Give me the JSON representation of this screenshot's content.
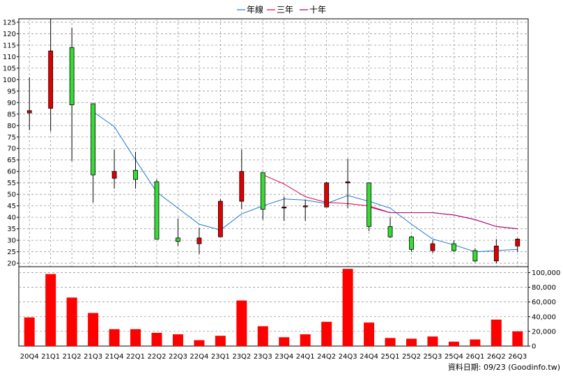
{
  "legend": [
    {
      "label": "年線",
      "color": "#1f77d4"
    },
    {
      "label": "三年",
      "color": "#e0004f"
    },
    {
      "label": "十年",
      "color": "#a0007a"
    }
  ],
  "credit": "資料日期: 09/23  (Goodinfo.tw)",
  "colors": {
    "up": "#e00000",
    "down": "#33dd33",
    "volume": "#ff0000",
    "grid": "#999999"
  },
  "chart_data": {
    "type": "candlestick",
    "categories": [
      "20Q4",
      "21Q1",
      "21Q2",
      "21Q3",
      "21Q4",
      "22Q1",
      "22Q2",
      "22Q3",
      "22Q4",
      "23Q1",
      "23Q2",
      "23Q3",
      "23Q4",
      "24Q1",
      "24Q2",
      "24Q3",
      "24Q4",
      "25Q1",
      "25Q2",
      "25Q3",
      "25Q4",
      "26Q1",
      "26Q2",
      "26Q3"
    ],
    "price_ticks": [
      20,
      25,
      30,
      35,
      40,
      45,
      50,
      55,
      60,
      65,
      70,
      75,
      80,
      85,
      90,
      95,
      100,
      105,
      110,
      115,
      120,
      125
    ],
    "price_ylim": [
      18.5,
      126.5
    ],
    "ohlc": [
      {
        "o": 85.5,
        "h": 101,
        "l": 78,
        "c": 86.5
      },
      {
        "o": 87.5,
        "h": 126.5,
        "l": 77.5,
        "c": 112.5
      },
      {
        "o": 114,
        "h": 122.5,
        "l": 64.5,
        "c": 89
      },
      {
        "o": 89.5,
        "h": 89.5,
        "l": 46.5,
        "c": 58.5
      },
      {
        "o": 57,
        "h": 69.5,
        "l": 52.5,
        "c": 60
      },
      {
        "o": 60.5,
        "h": 68.5,
        "l": 52.5,
        "c": 56.5
      },
      {
        "o": 55.5,
        "h": 56.5,
        "l": 30.5,
        "c": 30.5
      },
      {
        "o": 31,
        "h": 39.5,
        "l": 27.5,
        "c": 29.5
      },
      {
        "o": 28.5,
        "h": 35.5,
        "l": 24,
        "c": 31
      },
      {
        "o": 31.5,
        "h": 48,
        "l": 31.5,
        "c": 47
      },
      {
        "o": 47,
        "h": 69.5,
        "l": 43.5,
        "c": 60
      },
      {
        "o": 59.5,
        "h": 59.5,
        "l": 39,
        "c": 43.5
      },
      {
        "o": 44.5,
        "h": 49,
        "l": 38.5,
        "c": 44.5
      },
      {
        "o": 45,
        "h": 47.5,
        "l": 38.5,
        "c": 45
      },
      {
        "o": 44.5,
        "h": 55.5,
        "l": 44.5,
        "c": 55
      },
      {
        "o": 55,
        "h": 65.5,
        "l": 44,
        "c": 55.5
      },
      {
        "o": 55,
        "h": 55,
        "l": 34,
        "c": 36
      },
      {
        "o": 36,
        "h": 40,
        "l": 31,
        "c": 31.5
      },
      {
        "o": 31.5,
        "h": 32,
        "l": 25,
        "c": 26
      },
      {
        "o": 25.5,
        "h": 30,
        "l": 24.5,
        "c": 28.5
      },
      {
        "o": 28.5,
        "h": 30,
        "l": 25,
        "c": 25.5
      },
      {
        "o": 25.5,
        "h": 26.5,
        "l": 20.5,
        "c": 21
      },
      {
        "o": 21,
        "h": 30.5,
        "l": 20,
        "c": 27.5
      },
      {
        "o": 27.5,
        "h": 31,
        "l": 25,
        "c": 30.5
      }
    ],
    "volume_ticks": [
      0,
      20000,
      40000,
      60000,
      80000,
      100000
    ],
    "volume_tick_labels": [
      "0",
      "20,000",
      "40,000",
      "60,000",
      "80,000",
      "100,000"
    ],
    "volume_ylim": [
      0,
      108000
    ],
    "volume": [
      39000,
      98000,
      66000,
      45000,
      23000,
      23000,
      18000,
      16000,
      8000,
      14000,
      62000,
      27000,
      12000,
      16000,
      33000,
      105000,
      32000,
      11000,
      10000,
      13000,
      6000,
      9000,
      36000,
      20000
    ],
    "series": [
      {
        "name": "年線",
        "values": [
          null,
          null,
          null,
          86,
          79.5,
          65,
          51,
          44,
          37,
          34.5,
          41.5,
          45,
          48,
          47.5,
          46,
          49.5,
          47,
          44,
          37,
          30.5,
          28,
          25,
          25.5,
          26
        ]
      },
      {
        "name": "三年",
        "values": [
          null,
          null,
          null,
          null,
          null,
          null,
          null,
          null,
          null,
          null,
          null,
          58.5,
          54.5,
          49,
          46.5,
          46,
          45,
          42,
          42,
          42,
          41,
          39,
          36,
          35
        ]
      },
      {
        "name": "十年",
        "values": [
          null,
          null,
          null,
          null,
          null,
          null,
          null,
          null,
          null,
          null,
          null,
          null,
          null,
          null,
          null,
          null,
          44.5,
          42,
          42,
          42,
          41,
          39,
          36,
          35
        ]
      }
    ]
  }
}
